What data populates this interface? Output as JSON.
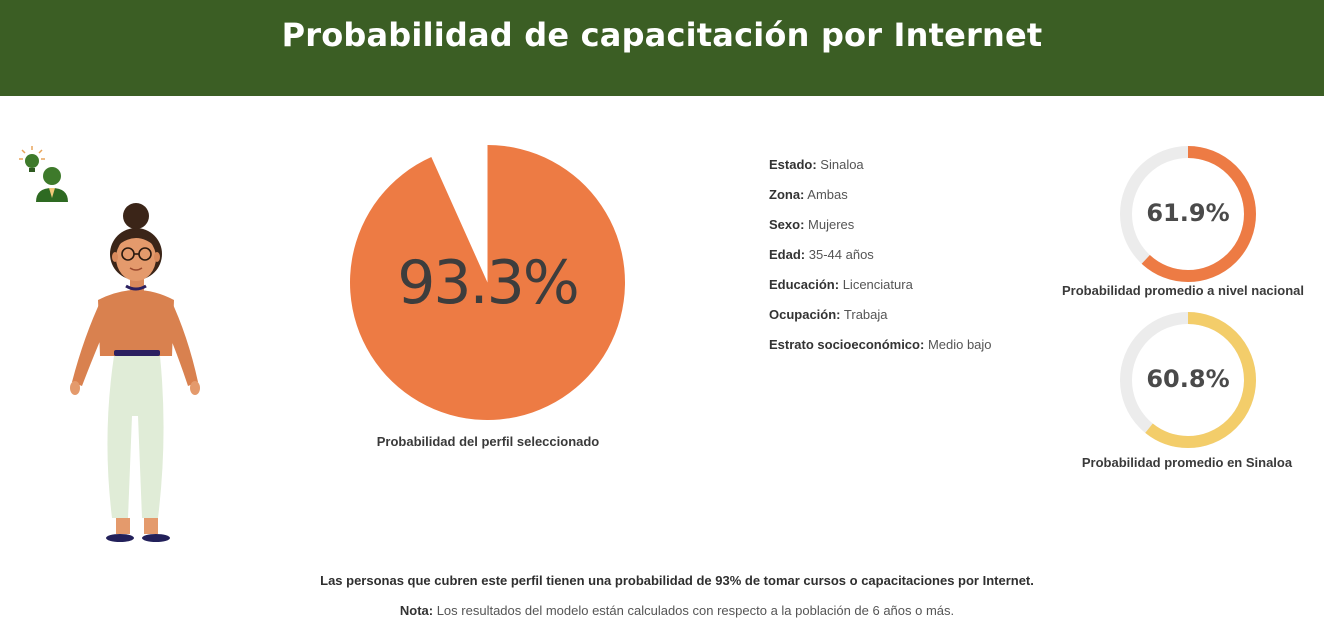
{
  "header": {
    "title": "Probabilidad de capacitación por Internet"
  },
  "colors": {
    "header_bg": "#3b5e24",
    "pie_fill": "#ed7b44",
    "ring_national": "#ed7b44",
    "ring_state": "#f3cd6a",
    "ring_track": "#ececec"
  },
  "icons": {
    "top_left": "idea-person-icon",
    "figure": "woman-avatar"
  },
  "main_chart": {
    "value_text": "93.3%",
    "label": "Probabilidad del perfil seleccionado"
  },
  "profile": {
    "items": [
      {
        "key": "Estado:",
        "value": "Sinaloa"
      },
      {
        "key": "Zona:",
        "value": "Ambas"
      },
      {
        "key": "Sexo:",
        "value": "Mujeres"
      },
      {
        "key": "Edad:",
        "value": "35-44 años"
      },
      {
        "key": "Educación:",
        "value": "Licenciatura"
      },
      {
        "key": "Ocupación:",
        "value": "Trabaja"
      },
      {
        "key": "Estrato socioeconómico:",
        "value": "Medio bajo"
      }
    ]
  },
  "national": {
    "value_text": "61.9%",
    "label": "Probabilidad promedio a nivel nacional"
  },
  "state": {
    "value_text": "60.8%",
    "label": "Probabilidad promedio en Sinaloa"
  },
  "footer": {
    "summary": "Las personas que cubren este perfil tienen una probabilidad de 93% de tomar cursos o capacitaciones por Internet.",
    "note_key": "Nota:",
    "note_text": "Los resultados del modelo están calculados con respecto a la población de 6 años o más."
  },
  "chart_data": [
    {
      "type": "pie",
      "values": [
        93.3,
        6.7
      ],
      "title": "",
      "label": "Probabilidad del perfil seleccionado"
    },
    {
      "type": "pie",
      "values": [
        61.9,
        38.1
      ],
      "title": "",
      "label": "Probabilidad promedio a nivel nacional"
    },
    {
      "type": "pie",
      "values": [
        60.8,
        39.2
      ],
      "title": "",
      "label": "Probabilidad promedio en Sinaloa"
    }
  ]
}
